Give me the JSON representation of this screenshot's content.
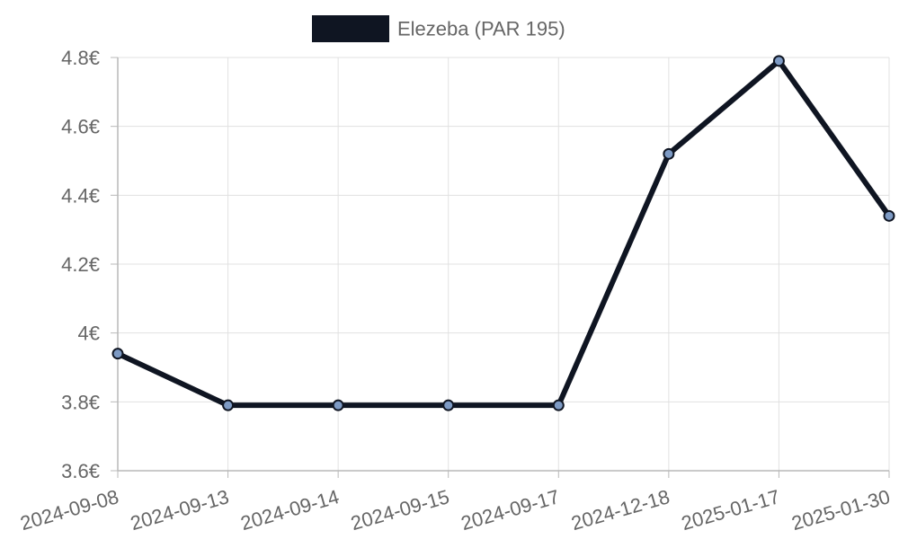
{
  "chart_data": {
    "type": "line",
    "legend": {
      "position": "top-center"
    },
    "categories": [
      "2024-09-08",
      "2024-09-13",
      "2024-09-14",
      "2024-09-15",
      "2024-09-17",
      "2024-12-18",
      "2025-01-17",
      "2025-01-30"
    ],
    "series": [
      {
        "name": "Elezeba (PAR 195)",
        "values": [
          3.94,
          3.79,
          3.79,
          3.79,
          3.79,
          4.52,
          4.79,
          4.34
        ],
        "color": "#0f1522",
        "point_color": "#7d9ac4"
      }
    ],
    "ylim": [
      3.6,
      4.8
    ],
    "yticks": [
      3.6,
      3.8,
      4.0,
      4.2,
      4.4,
      4.6,
      4.8
    ],
    "ytick_labels": [
      "3.6€",
      "3.8€",
      "4€",
      "4.2€",
      "4.4€",
      "4.6€",
      "4.8€"
    ],
    "grid": true
  }
}
